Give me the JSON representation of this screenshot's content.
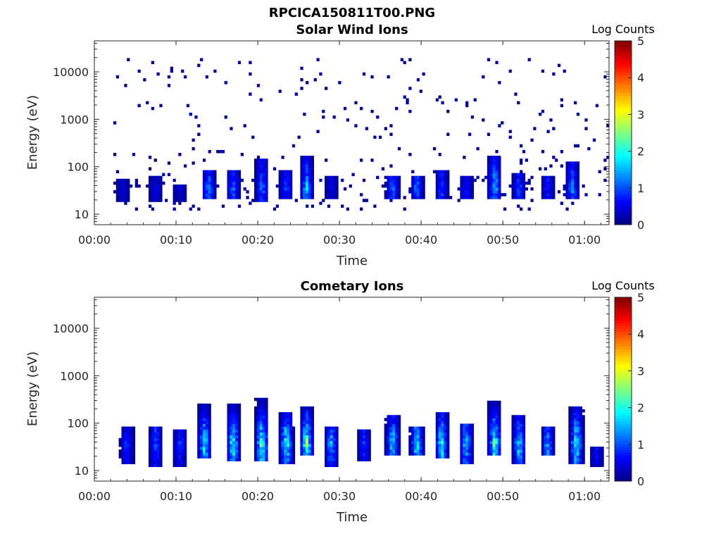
{
  "figure": {
    "title": "RPCICA150811T00.PNG"
  },
  "chart_data": [
    {
      "type": "heatmap",
      "title": "Solar Wind Ions",
      "xlabel": "Time",
      "ylabel": "Energy (eV)",
      "x_ticks": [
        "00:00",
        "00:10",
        "00:20",
        "00:30",
        "00:40",
        "00:50",
        "01:00"
      ],
      "x_tick_minutes": [
        0,
        10,
        20,
        30,
        40,
        50,
        60
      ],
      "xlim_minutes": [
        0,
        63
      ],
      "y_scale": "log",
      "y_ticks": [
        "10",
        "100",
        "1000",
        "10000"
      ],
      "y_tick_values": [
        10,
        100,
        1000,
        10000
      ],
      "ylim": [
        6,
        45000
      ],
      "colorbar": {
        "label": "Log Counts",
        "ticks": [
          "0",
          "1",
          "2",
          "3",
          "4",
          "5"
        ],
        "range": [
          0,
          5
        ],
        "colormap": "jet"
      },
      "bursts": [
        {
          "t": 3.5,
          "e_low": 18,
          "e_high": 55,
          "peak": 0.5
        },
        {
          "t": 7.5,
          "e_low": 18,
          "e_high": 60,
          "peak": 0.6
        },
        {
          "t": 10.5,
          "e_low": 18,
          "e_high": 45,
          "peak": 0.5
        },
        {
          "t": 14.0,
          "e_low": 20,
          "e_high": 80,
          "peak": 1.4
        },
        {
          "t": 17.0,
          "e_low": 20,
          "e_high": 80,
          "peak": 1.2
        },
        {
          "t": 20.5,
          "e_low": 18,
          "e_high": 150,
          "peak": 1.4
        },
        {
          "t": 23.5,
          "e_low": 20,
          "e_high": 80,
          "peak": 1.0
        },
        {
          "t": 26.0,
          "e_low": 22,
          "e_high": 160,
          "peak": 1.7
        },
        {
          "t": 29.0,
          "e_low": 20,
          "e_high": 60,
          "peak": 0.6
        },
        {
          "t": 36.5,
          "e_low": 22,
          "e_high": 60,
          "peak": 1.3
        },
        {
          "t": 39.5,
          "e_low": 22,
          "e_high": 60,
          "peak": 1.3
        },
        {
          "t": 42.5,
          "e_low": 22,
          "e_high": 80,
          "peak": 1.2
        },
        {
          "t": 45.5,
          "e_low": 22,
          "e_high": 60,
          "peak": 0.9
        },
        {
          "t": 49.0,
          "e_low": 22,
          "e_high": 160,
          "peak": 1.8
        },
        {
          "t": 52.0,
          "e_low": 20,
          "e_high": 70,
          "peak": 1.1
        },
        {
          "t": 55.5,
          "e_low": 22,
          "e_high": 60,
          "peak": 0.9
        },
        {
          "t": 58.5,
          "e_low": 20,
          "e_high": 130,
          "peak": 1.4
        }
      ]
    },
    {
      "type": "heatmap",
      "title": "Cometary Ions",
      "xlabel": "Time",
      "ylabel": "Energy (eV)",
      "x_ticks": [
        "00:00",
        "00:10",
        "00:20",
        "00:30",
        "00:40",
        "00:50",
        "01:00"
      ],
      "x_tick_minutes": [
        0,
        10,
        20,
        30,
        40,
        50,
        60
      ],
      "xlim_minutes": [
        0,
        63
      ],
      "y_scale": "log",
      "y_ticks": [
        "10",
        "100",
        "1000",
        "10000"
      ],
      "y_tick_values": [
        10,
        100,
        1000,
        10000
      ],
      "ylim": [
        6,
        45000
      ],
      "colorbar": {
        "label": "Log Counts",
        "ticks": [
          "0",
          "1",
          "2",
          "3",
          "4",
          "5"
        ],
        "range": [
          0,
          5
        ],
        "colormap": "jet"
      },
      "bursts": [
        {
          "t": 4.0,
          "e_low": 14,
          "e_high": 85,
          "peak": 1.0
        },
        {
          "t": 7.5,
          "e_low": 12,
          "e_high": 90,
          "peak": 1.3
        },
        {
          "t": 10.5,
          "e_low": 12,
          "e_high": 70,
          "peak": 1.0
        },
        {
          "t": 13.5,
          "e_low": 18,
          "e_high": 250,
          "peak": 2.1
        },
        {
          "t": 17.0,
          "e_low": 16,
          "e_high": 250,
          "peak": 2.3
        },
        {
          "t": 20.5,
          "e_low": 16,
          "e_high": 330,
          "peak": 2.6
        },
        {
          "t": 23.5,
          "e_low": 14,
          "e_high": 160,
          "peak": 2.4
        },
        {
          "t": 26.0,
          "e_low": 20,
          "e_high": 240,
          "peak": 2.6
        },
        {
          "t": 29.0,
          "e_low": 12,
          "e_high": 90,
          "peak": 1.7
        },
        {
          "t": 33.0,
          "e_low": 16,
          "e_high": 70,
          "peak": 1.0
        },
        {
          "t": 36.5,
          "e_low": 20,
          "e_high": 150,
          "peak": 2.0
        },
        {
          "t": 39.5,
          "e_low": 20,
          "e_high": 90,
          "peak": 2.2
        },
        {
          "t": 42.5,
          "e_low": 18,
          "e_high": 160,
          "peak": 2.3
        },
        {
          "t": 45.5,
          "e_low": 14,
          "e_high": 100,
          "peak": 1.9
        },
        {
          "t": 49.0,
          "e_low": 20,
          "e_high": 290,
          "peak": 2.5
        },
        {
          "t": 52.0,
          "e_low": 14,
          "e_high": 150,
          "peak": 2.0
        },
        {
          "t": 55.5,
          "e_low": 22,
          "e_high": 80,
          "peak": 1.6
        },
        {
          "t": 59.0,
          "e_low": 14,
          "e_high": 240,
          "peak": 2.4
        },
        {
          "t": 61.5,
          "e_low": 12,
          "e_high": 30,
          "peak": 0.8
        }
      ]
    }
  ]
}
